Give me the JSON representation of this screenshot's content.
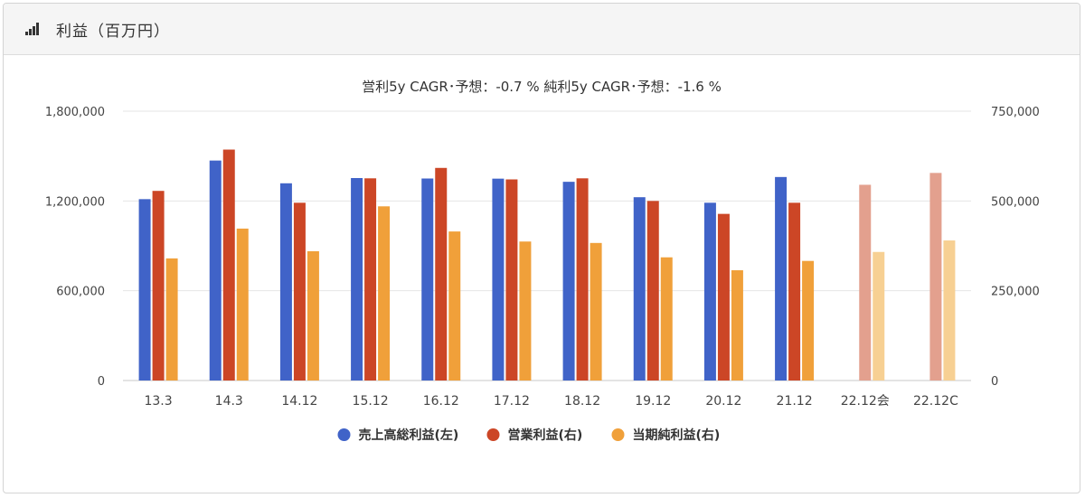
{
  "panel": {
    "title": "利益（百万円）",
    "icon": "bar-chart-icon"
  },
  "chart_data": {
    "type": "bar",
    "title": "営利5y CAGR･予想：-0.7 %   純利5y CAGR･予想：-1.6 %",
    "categories": [
      "13.3",
      "14.3",
      "14.12",
      "15.12",
      "16.12",
      "17.12",
      "18.12",
      "19.12",
      "20.12",
      "21.12",
      "22.12会",
      "22.12C"
    ],
    "left_axis": {
      "min": 0,
      "max": 1800000,
      "ticks": [
        "0",
        "600,000",
        "1,200,000",
        "1,800,000"
      ]
    },
    "right_axis": {
      "min": 0,
      "max": 750000,
      "ticks": [
        "0",
        "250,000",
        "500,000",
        "750,000"
      ]
    },
    "grid": true,
    "legend_position": "bottom",
    "series": [
      {
        "name": "売上高総利益(左)",
        "axis": "left",
        "color": "#4063c8",
        "values": [
          1212000,
          1470000,
          1318000,
          1353000,
          1350000,
          1349000,
          1328000,
          1225000,
          1188000,
          1360000,
          null,
          null
        ]
      },
      {
        "name": "営業利益(右)",
        "axis": "right",
        "color": "#cc4626",
        "values": [
          528000,
          643000,
          495000,
          563000,
          592000,
          560000,
          563000,
          500000,
          464000,
          495000,
          545000,
          578000
        ]
      },
      {
        "name": "当期純利益(右)",
        "axis": "right",
        "color": "#f0a03a",
        "values": [
          340000,
          423000,
          360000,
          485000,
          415000,
          387000,
          383000,
          343000,
          307000,
          333000,
          358000,
          390000
        ]
      }
    ],
    "forecast_colors": {
      "営業利益(右)": "#e3a08e",
      "当期純利益(右)": "#f7d093"
    },
    "forecast_from_index": 10
  }
}
